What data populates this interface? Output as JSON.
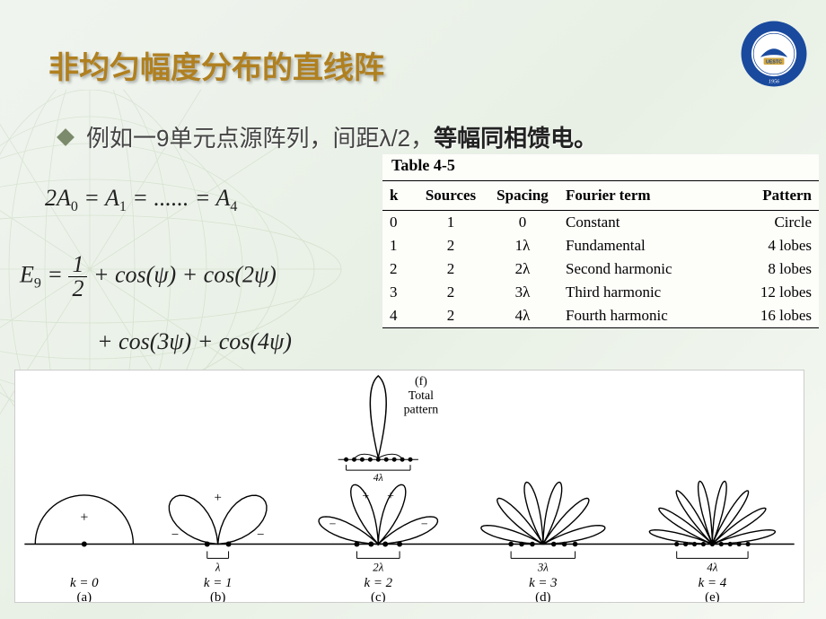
{
  "title": "非均匀幅度分布的直线阵",
  "bullet": {
    "prefix": "例如一9单元点源阵列，间距λ/2，",
    "bold": "等幅同相馈电。"
  },
  "equations": {
    "eq1": "2A₀ = A₁ = ...... = A₄",
    "eq2_lhs": "E₉ =",
    "eq2_frac_n": "1",
    "eq2_frac_d": "2",
    "eq2_rhs": " + cos(ψ) + cos(2ψ)",
    "eq3": "+ cos(3ψ) + cos(4ψ)"
  },
  "table": {
    "title": "Table 4-5",
    "columns": [
      "k",
      "Sources",
      "Spacing",
      "Fourier term",
      "Pattern"
    ],
    "rows": [
      [
        "0",
        "1",
        "0",
        "Constant",
        "Circle"
      ],
      [
        "1",
        "2",
        "1λ",
        "Fundamental",
        "4 lobes"
      ],
      [
        "2",
        "2",
        "2λ",
        "Second harmonic",
        "8 lobes"
      ],
      [
        "3",
        "2",
        "3λ",
        "Third harmonic",
        "12 lobes"
      ],
      [
        "4",
        "2",
        "4λ",
        "Fourth harmonic",
        "16 lobes"
      ]
    ]
  },
  "patterns": {
    "total_label_top": "(f)",
    "total_label": "Total",
    "total_label2": "pattern",
    "items": [
      {
        "k_label": "k = 0",
        "sub": "(a)",
        "spacing": ""
      },
      {
        "k_label": "k = 1",
        "sub": "(b)",
        "spacing": "λ"
      },
      {
        "k_label": "k = 2",
        "sub": "(c)",
        "spacing": "2λ"
      },
      {
        "k_label": "k = 3",
        "sub": "(d)",
        "spacing": "3λ"
      },
      {
        "k_label": "k = 4",
        "sub": "(e)",
        "spacing": "4λ"
      }
    ],
    "four_lambda": "4λ",
    "style": {
      "stroke": "#000000",
      "stroke_width": 1.4,
      "label_fontsize": 15,
      "spacing_fontsize": 13
    }
  },
  "logo": {
    "outer_color": "#1a4a9e",
    "inner_text": "UESTC",
    "year": "1956"
  },
  "colors": {
    "title": "#b08020",
    "bg_grid": "#9ab585"
  }
}
